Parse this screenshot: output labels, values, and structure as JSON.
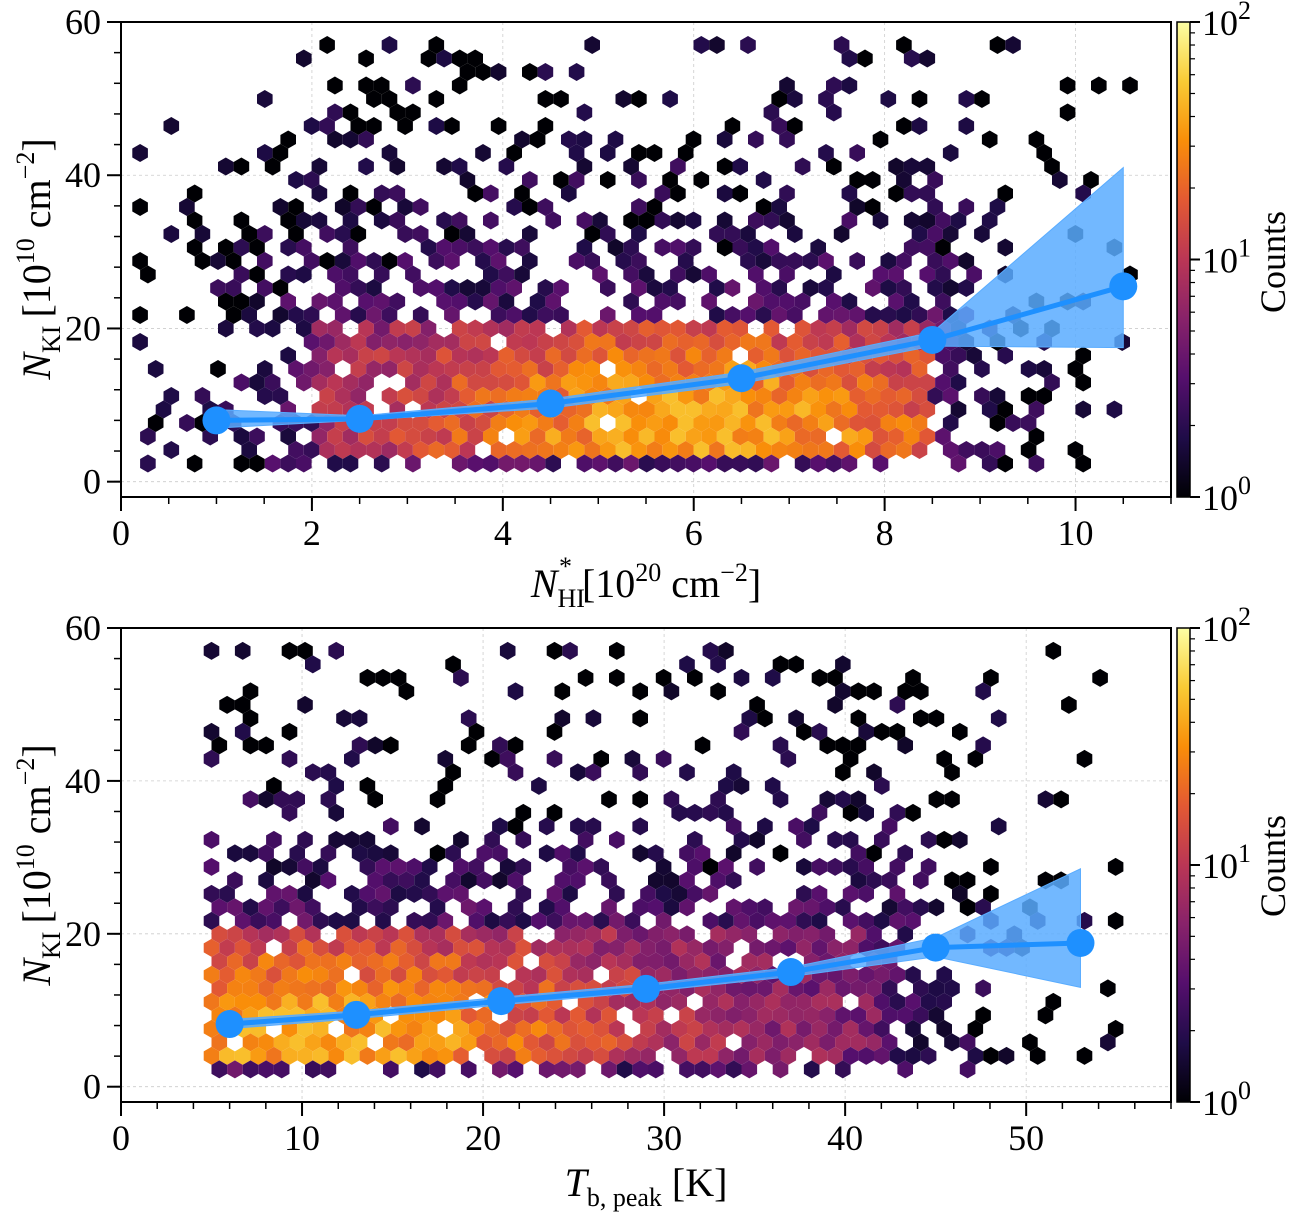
{
  "chart_data": [
    {
      "type": "hexbin",
      "xlabel": {
        "symbol": "N",
        "sub": "HI",
        "sup": "*",
        "unit": "[10",
        "unit_exp": "20",
        "unit_rest": " cm",
        "unit_rest_exp": "−2",
        "unit_close": "]"
      },
      "ylabel": {
        "symbol": "N",
        "sub": "KI",
        "unit": "[10",
        "unit_exp": "10",
        "unit_rest": " cm",
        "unit_rest_exp": "−2",
        "unit_close": "]"
      },
      "xlim": [
        0,
        11
      ],
      "ylim": [
        -2,
        60
      ],
      "xticks": [
        "0",
        "2",
        "4",
        "6",
        "8",
        "10"
      ],
      "xtick_values": [
        0,
        2,
        4,
        6,
        8,
        10
      ],
      "yticks": [
        "0",
        "20",
        "40",
        "60"
      ],
      "ytick_values": [
        0,
        20,
        40,
        60
      ],
      "grid": true,
      "hexbin_density": {
        "x_range": [
          0.2,
          10.6
        ],
        "y_range": [
          1.5,
          57
        ],
        "dense_core_x": [
          2.0,
          8.5
        ],
        "dense_core_y": [
          3,
          20
        ],
        "peak_x": 6.0,
        "peak_y": 8.0
      },
      "median_line": {
        "x": [
          1.0,
          2.5,
          4.5,
          6.5,
          8.5,
          10.5
        ],
        "y": [
          8.0,
          8.2,
          10.2,
          13.5,
          18.5,
          25.5
        ],
        "band_lower": [
          7.0,
          8.0,
          9.6,
          12.8,
          17.7,
          17.5
        ],
        "band_upper": [
          9.4,
          8.6,
          10.8,
          14.3,
          19.5,
          41.0
        ],
        "color": "#1e90ff"
      },
      "colorbar": {
        "label": "Counts",
        "scale": "log",
        "range": [
          1,
          100
        ],
        "ticks": [
          "10",
          "10",
          "10"
        ],
        "tick_exps": [
          "0",
          "1",
          "2"
        ],
        "tick_values": [
          1,
          10,
          100
        ]
      }
    },
    {
      "type": "hexbin",
      "xlabel": {
        "symbol": "T",
        "sub": "b, peak",
        "unit": "[K]"
      },
      "ylabel": {
        "symbol": "N",
        "sub": "KI",
        "unit": "[10",
        "unit_exp": "10",
        "unit_rest": " cm",
        "unit_rest_exp": "−2",
        "unit_close": "]"
      },
      "xlim": [
        0,
        58
      ],
      "ylim": [
        -2,
        60
      ],
      "xticks": [
        "0",
        "10",
        "20",
        "30",
        "40",
        "50"
      ],
      "xtick_values": [
        0,
        10,
        20,
        30,
        40,
        50
      ],
      "yticks": [
        "0",
        "20",
        "40",
        "60"
      ],
      "ytick_values": [
        0,
        20,
        40,
        60
      ],
      "grid": true,
      "hexbin_density": {
        "x_range": [
          5,
          55
        ],
        "y_range": [
          1.5,
          57
        ],
        "dense_core_x": [
          5,
          42
        ],
        "dense_core_y": [
          3,
          20
        ],
        "peak_x": 10,
        "peak_y": 7
      },
      "median_line": {
        "x": [
          6,
          13,
          21,
          29,
          37,
          45,
          53
        ],
        "y": [
          8.2,
          9.4,
          11.2,
          12.8,
          15.0,
          18.2,
          18.8
        ],
        "band_lower": [
          7.6,
          8.9,
          10.7,
          12.4,
          14.4,
          17.0,
          13.0
        ],
        "band_upper": [
          8.8,
          9.9,
          11.7,
          13.4,
          15.6,
          19.5,
          28.5
        ],
        "color": "#1e90ff"
      },
      "colorbar": {
        "label": "Counts",
        "scale": "log",
        "range": [
          1,
          100
        ],
        "ticks": [
          "10",
          "10",
          "10"
        ],
        "tick_exps": [
          "0",
          "1",
          "2"
        ],
        "tick_values": [
          1,
          10,
          100
        ]
      }
    }
  ],
  "colors": {
    "median": "#1e90ff",
    "band": "#59acff",
    "grid": "#cccccc",
    "colormap": [
      "#000004",
      "#1f0c48",
      "#550f6d",
      "#88226a",
      "#ba3655",
      "#e35933",
      "#f98e09",
      "#f9cb35",
      "#fcffa4"
    ]
  }
}
